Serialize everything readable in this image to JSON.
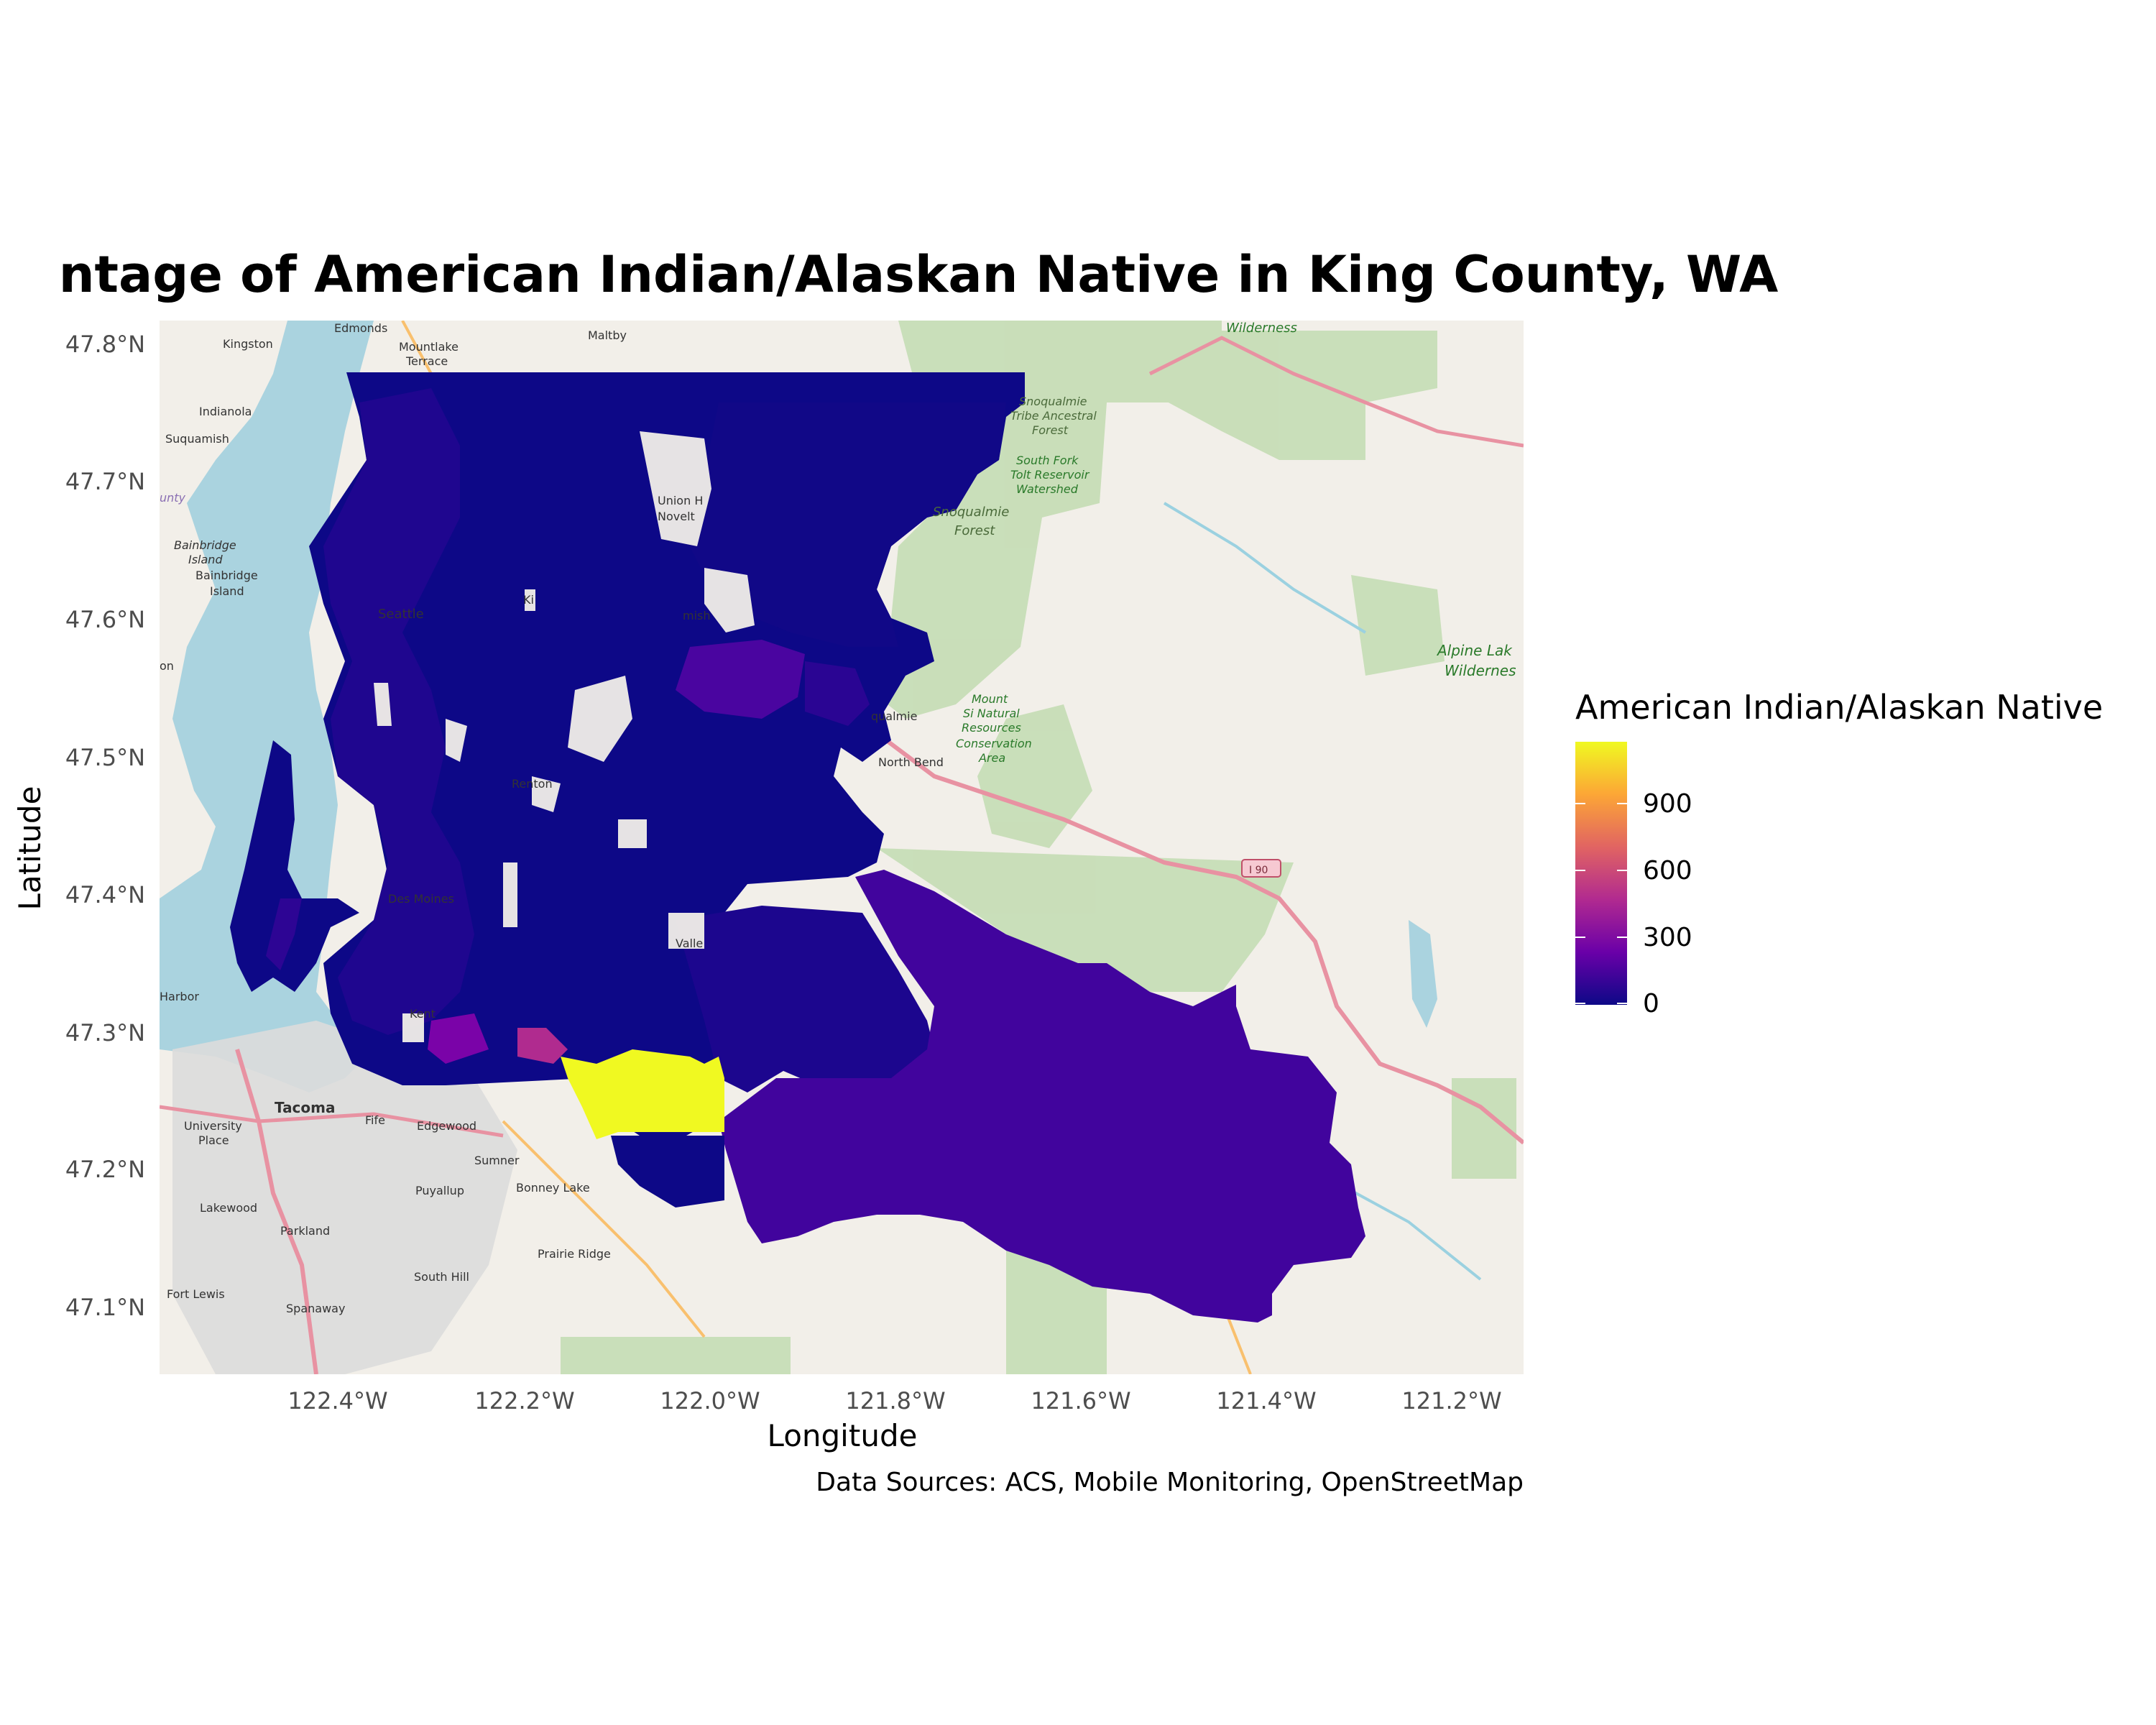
{
  "title": "ntage of American Indian/Alaskan Native in King County, WA",
  "x_axis": {
    "label": "Longitude",
    "ticks": [
      "122.4°W",
      "122.2°W",
      "122.0°W",
      "121.8°W",
      "121.6°W",
      "121.4°W",
      "121.2°W"
    ]
  },
  "y_axis": {
    "label": "Latitude",
    "ticks": [
      "47.8°N",
      "47.7°N",
      "47.6°N",
      "47.5°N",
      "47.4°N",
      "47.3°N",
      "47.2°N",
      "47.1°N"
    ]
  },
  "legend": {
    "title": "American Indian/Alaskan Native",
    "ticks": [
      "900",
      "600",
      "300",
      "0"
    ],
    "colors": [
      "#0d0887",
      "#6a00a8",
      "#b12a90",
      "#e16462",
      "#fca636",
      "#f0f921"
    ]
  },
  "caption": "Data Sources: ACS, Mobile Monitoring, OpenStreetMap",
  "basemap": {
    "water_color": "#aad3df",
    "land_color": "#f2efe9",
    "forest_color": "#c2dcb1",
    "labels": {
      "kingston": "Kingston",
      "edmonds": "Edmonds",
      "mountlake": "Mountlake",
      "terrace": "Terrace",
      "maltby": "Maltby",
      "indianola": "Indianola",
      "suquamish": "Suquamish",
      "bainbridge_island_1": "Bainbridge",
      "bainbridge_island_2": "Island",
      "bainbridge_island_3": "Bainbridge",
      "bainbridge_island_4": "Island",
      "seattle": "Seattle",
      "union_hill": "Union H",
      "novelty": "Novelt",
      "snoqualmie_forest_1": "Snoqualmie",
      "snoqualmie_forest_2": "Forest",
      "snoqualmie_tribe_1": "Snoqualmie",
      "snoqualmie_tribe_2": "Tribe Ancestral",
      "snoqualmie_tribe_3": "Forest",
      "south_fork_1": "South Fork",
      "south_fork_2": "Tolt Reservoir",
      "south_fork_3": "Watershed",
      "wilderness": "Wilderness",
      "alpine_1": "Alpine Lak",
      "alpine_2": "Wildernes",
      "snoqualmie_city": "qualmie",
      "north_bend": "North Bend",
      "mount_si_1": "Mount",
      "mount_si_2": "Si Natural",
      "mount_si_3": "Resources",
      "mount_si_4": "Conservation",
      "mount_si_5": "Area",
      "i90": "I 90",
      "harbor": "Harbor",
      "tacoma": "Tacoma",
      "fife": "Fife",
      "edgewood": "Edgewood",
      "university_place_1": "University",
      "university_place_2": "Place",
      "sumner": "Sumner",
      "puyallup": "Puyallup",
      "bonney_lake": "Bonney Lake",
      "lakewood": "Lakewood",
      "parkland": "Parkland",
      "prairie_ridge": "Prairie Ridge",
      "south_hill": "South Hill",
      "fort_lewis": "Fort Lewis",
      "spanaway": "Spanaway",
      "des_moines": "Des Moines",
      "renton": "Renton",
      "kent": "Kent",
      "maple_valley": "Valle",
      "sammamish": "mish",
      "kirkland": "Ki",
      "on": "on",
      "county": "unty"
    }
  }
}
